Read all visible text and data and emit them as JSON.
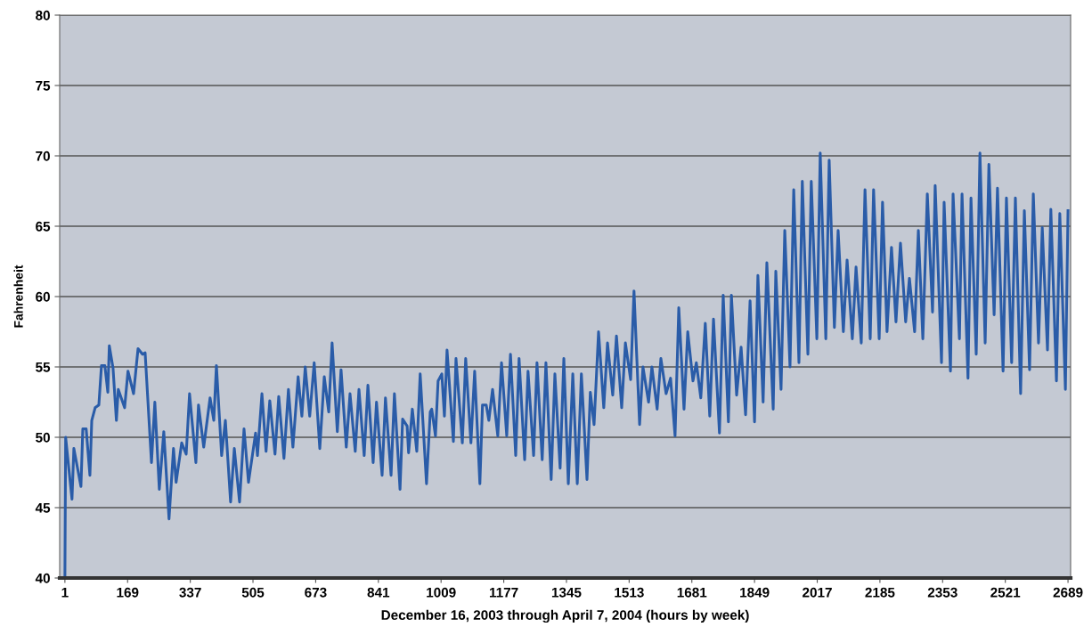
{
  "chart_data": {
    "type": "line",
    "xlabel": "December 16, 2003 through April 7, 2004 (hours by week)",
    "ylabel": "Fahrenheit",
    "xlim": [
      -13,
      2696
    ],
    "xticks": [
      1,
      169,
      337,
      505,
      673,
      841,
      1009,
      1177,
      1345,
      1513,
      1681,
      1849,
      2017,
      2185,
      2353,
      2521,
      2689
    ],
    "ylim": [
      40,
      80
    ],
    "yticks": [
      40,
      45,
      50,
      55,
      60,
      65,
      70,
      75,
      80
    ],
    "grid": "y",
    "marker": "none",
    "line_style": "solid",
    "series": [
      {
        "color": "#2a5ca8",
        "x": [
          1,
          3,
          20,
          25,
          44,
          49,
          58,
          68,
          73,
          82,
          92,
          99,
          108,
          116,
          120,
          130,
          139,
          144,
          161,
          170,
          185,
          197,
          209,
          216,
          233,
          242,
          254,
          266,
          280,
          292,
          299,
          314,
          326,
          335,
          352,
          359,
          373,
          390,
          400,
          407,
          421,
          431,
          445,
          455,
          469,
          481,
          493,
          512,
          517,
          529,
          540,
          550,
          564,
          574,
          588,
          600,
          612,
          626,
          636,
          645,
          657,
          669,
          684,
          696,
          708,
          717,
          731,
          741,
          755,
          765,
          779,
          789,
          803,
          813,
          827,
          836,
          851,
          860,
          875,
          884,
          899,
          906,
          918,
          922,
          932,
          944,
          953,
          970,
          980,
          984,
          994,
          1001,
          1011,
          1018,
          1025,
          1042,
          1049,
          1066,
          1075,
          1089,
          1099,
          1113,
          1120,
          1130,
          1137,
          1147,
          1161,
          1171,
          1185,
          1195,
          1209,
          1218,
          1233,
          1242,
          1257,
          1266,
          1280,
          1290,
          1304,
          1314,
          1328,
          1338,
          1350,
          1362,
          1374,
          1385,
          1400,
          1409,
          1419,
          1431,
          1445,
          1455,
          1469,
          1479,
          1493,
          1503,
          1517,
          1526,
          1541,
          1550,
          1565,
          1574,
          1588,
          1598,
          1612,
          1624,
          1636,
          1646,
          1660,
          1670,
          1684,
          1693,
          1705,
          1717,
          1729,
          1739,
          1755,
          1765,
          1779,
          1787,
          1801,
          1813,
          1825,
          1837,
          1849,
          1858,
          1872,
          1882,
          1899,
          1906,
          1920,
          1930,
          1944,
          1954,
          1968,
          1977,
          1992,
          2001,
          2016,
          2025,
          2040,
          2049,
          2063,
          2073,
          2087,
          2097,
          2111,
          2121,
          2135,
          2145,
          2159,
          2168,
          2183,
          2192,
          2204,
          2216,
          2228,
          2240,
          2254,
          2264,
          2278,
          2288,
          2300,
          2312,
          2326,
          2333,
          2350,
          2357,
          2374,
          2381,
          2398,
          2405,
          2421,
          2429,
          2443,
          2453,
          2467,
          2477,
          2491,
          2500,
          2515,
          2524,
          2538,
          2548,
          2562,
          2572,
          2586,
          2596,
          2610,
          2620,
          2634,
          2643,
          2658,
          2667,
          2682,
          2689
        ],
        "values": [
          40,
          50,
          45.6,
          49.2,
          46.5,
          50.6,
          50.6,
          47.3,
          51.2,
          52.1,
          52.3,
          55.1,
          55.1,
          53.2,
          56.5,
          54.9,
          51.2,
          53.4,
          52.1,
          54.7,
          53.1,
          56.3,
          55.9,
          56.0,
          48.2,
          52.5,
          46.3,
          50.4,
          44.2,
          49.2,
          46.8,
          49.6,
          48.8,
          53.1,
          48.2,
          52.3,
          49.3,
          52.8,
          51.2,
          55.1,
          48.7,
          51.2,
          45.4,
          49.2,
          45.4,
          50.6,
          46.8,
          50.3,
          48.7,
          53.1,
          49.0,
          52.6,
          48.8,
          52.9,
          48.5,
          53.4,
          49.3,
          54.3,
          51.5,
          55.0,
          51.5,
          55.3,
          49.2,
          54.3,
          51.8,
          56.7,
          50.4,
          54.8,
          49.3,
          53.1,
          49.0,
          53.4,
          48.7,
          53.7,
          48.2,
          52.5,
          47.3,
          52.8,
          47.3,
          53.1,
          46.3,
          51.3,
          50.8,
          48.9,
          52.0,
          49.0,
          54.5,
          46.7,
          51.8,
          52.0,
          50.1,
          54.0,
          54.5,
          51.5,
          56.2,
          49.7,
          55.6,
          49.6,
          55.6,
          49.6,
          54.7,
          46.7,
          52.3,
          52.3,
          51.2,
          53.4,
          50.1,
          55.3,
          50.1,
          55.9,
          48.7,
          55.6,
          48.4,
          54.7,
          48.7,
          55.3,
          48.4,
          55.3,
          47.0,
          54.5,
          47.8,
          55.6,
          46.7,
          54.5,
          46.7,
          54.5,
          47.0,
          53.2,
          50.9,
          57.5,
          52.1,
          56.7,
          53.0,
          57.2,
          52.1,
          56.7,
          54.1,
          60.4,
          50.9,
          55.0,
          52.5,
          55.0,
          52.0,
          55.6,
          53.1,
          54.2,
          50.1,
          59.2,
          52.0,
          57.5,
          54.0,
          55.3,
          52.8,
          58.1,
          51.5,
          58.4,
          50.3,
          60.1,
          51.1,
          60.1,
          53.0,
          56.4,
          51.6,
          59.7,
          51.1,
          61.5,
          52.5,
          62.4,
          52.0,
          61.8,
          53.4,
          64.7,
          55.0,
          67.6,
          55.3,
          68.2,
          55.9,
          68.2,
          57.0,
          70.2,
          57.0,
          69.7,
          57.8,
          64.7,
          57.5,
          62.6,
          57.0,
          62.1,
          56.7,
          67.6,
          57.0,
          67.6,
          57.0,
          66.7,
          57.5,
          63.5,
          58.2,
          63.8,
          58.2,
          61.3,
          57.5,
          64.7,
          57.0,
          67.3,
          58.9,
          67.9,
          55.3,
          66.7,
          54.7,
          67.3,
          57.0,
          67.3,
          54.2,
          67.0,
          55.9,
          70.2,
          56.7,
          69.4,
          58.7,
          67.7,
          54.7,
          67.0,
          55.3,
          67.0,
          53.1,
          66.1,
          54.8,
          67.3,
          56.7,
          64.9,
          56.2,
          66.2,
          54.0,
          65.9,
          53.4,
          66.1
        ]
      }
    ]
  }
}
